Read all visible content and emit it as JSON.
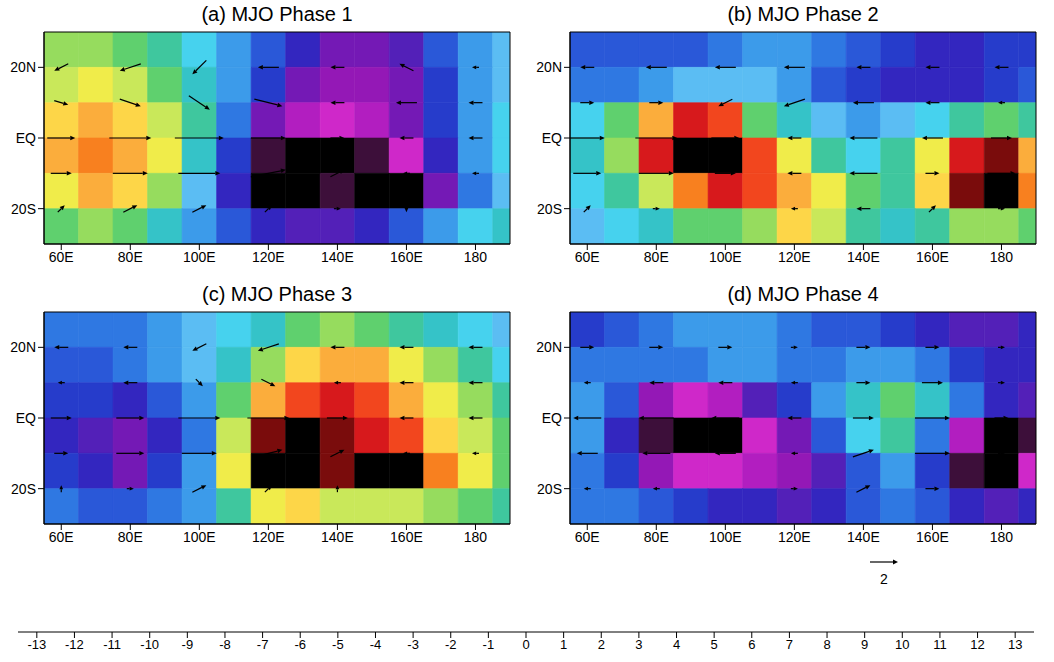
{
  "chart_data": [
    {
      "type": "heatmap",
      "title": "(a) MJO Phase 1",
      "xlim": [
        55,
        190
      ],
      "xticks": [
        {
          "value": 60,
          "label": "60E"
        },
        {
          "value": 80,
          "label": "80E"
        },
        {
          "value": 100,
          "label": "100E"
        },
        {
          "value": 120,
          "label": "120E"
        },
        {
          "value": 140,
          "label": "140E"
        },
        {
          "value": 160,
          "label": "160E"
        },
        180
      ],
      "ylim": [
        -30,
        30
      ],
      "yticks": [
        {
          "value": -20,
          "label": "20S"
        },
        {
          "value": 0,
          "label": "EQ"
        },
        {
          "value": 20,
          "label": "20N"
        }
      ],
      "x": [
        60,
        70,
        80,
        90,
        100,
        110,
        120,
        130,
        140,
        150,
        160,
        170,
        180,
        190
      ],
      "y": [
        25,
        15,
        5,
        -5,
        -15,
        -25
      ],
      "values": [
        [
          -4,
          -4,
          -3,
          -2,
          0,
          2,
          4,
          6,
          8,
          8,
          7,
          4,
          2,
          1
        ],
        [
          -5,
          -6,
          -5,
          -3,
          -1,
          2,
          5,
          8,
          9,
          9,
          8,
          5,
          2,
          1
        ],
        [
          -7,
          -8,
          -7,
          -5,
          -2,
          3,
          8,
          10,
          11,
          10,
          8,
          5,
          2,
          0
        ],
        [
          -8,
          -9,
          -8,
          -6,
          -1,
          5,
          12,
          13,
          13,
          12,
          11,
          6,
          2,
          0
        ],
        [
          -6,
          -8,
          -7,
          -4,
          1,
          6,
          13,
          13,
          12,
          13,
          13,
          8,
          3,
          1
        ],
        [
          -3,
          -4,
          -3,
          -1,
          2,
          4,
          6,
          7,
          7,
          6,
          4,
          2,
          0,
          -1
        ]
      ],
      "vectors": {
        "x": [
          60,
          80,
          100,
          120,
          140,
          160,
          180
        ],
        "y": [
          20,
          10,
          0,
          -10,
          -20
        ],
        "u": [
          [
            -1,
            -1.5,
            -1,
            -1.5,
            -1,
            -1,
            -0.5
          ],
          [
            1,
            1.5,
            1.5,
            2,
            -1,
            -1.5,
            -1
          ],
          [
            2,
            3,
            3.5,
            2.5,
            1,
            -1,
            -1
          ],
          [
            1.5,
            2.5,
            3,
            2.5,
            1,
            -0.5,
            -0.5
          ],
          [
            0.5,
            1,
            1,
            0.5,
            0.5,
            0,
            0
          ]
        ],
        "v": [
          [
            -0.5,
            -0.5,
            -1,
            0,
            0,
            0.5,
            0
          ],
          [
            -0.3,
            -0.5,
            -1,
            -0.5,
            0,
            0,
            0
          ],
          [
            0,
            0,
            0,
            0,
            0,
            0,
            0
          ],
          [
            0,
            0,
            0,
            0.5,
            0.5,
            0,
            0
          ],
          [
            0.5,
            0.5,
            0.5,
            0.5,
            0,
            -0.5,
            0
          ]
        ]
      }
    },
    {
      "type": "heatmap",
      "title": "(b) MJO Phase 2",
      "xlim": [
        55,
        190
      ],
      "xticks": [
        {
          "value": 60,
          "label": "60E"
        },
        {
          "value": 80,
          "label": "80E"
        },
        {
          "value": 100,
          "label": "100E"
        },
        {
          "value": 120,
          "label": "120E"
        },
        {
          "value": 140,
          "label": "140E"
        },
        {
          "value": 160,
          "label": "160E"
        },
        180
      ],
      "ylim": [
        -30,
        30
      ],
      "yticks": [
        {
          "value": -20,
          "label": "20S"
        },
        {
          "value": 0,
          "label": "EQ"
        },
        {
          "value": 20,
          "label": "20N"
        }
      ],
      "x": [
        60,
        70,
        80,
        90,
        100,
        110,
        120,
        130,
        140,
        150,
        160,
        170,
        180,
        190
      ],
      "y": [
        25,
        15,
        5,
        -5,
        -15,
        -25
      ],
      "values": [
        [
          4,
          4,
          4,
          4,
          3,
          2,
          2,
          3,
          4,
          5,
          6,
          6,
          5,
          5
        ],
        [
          3,
          3,
          2,
          1,
          1,
          1,
          2,
          4,
          5,
          6,
          6,
          6,
          5,
          4
        ],
        [
          0,
          -3,
          -8,
          -11,
          -10,
          -3,
          -1,
          1,
          2,
          1,
          0,
          -2,
          -3,
          -2
        ],
        [
          -1,
          -4,
          -11,
          -13,
          -13,
          -10,
          -6,
          -2,
          0,
          -2,
          -6,
          -11,
          -12,
          -8
        ],
        [
          0,
          -2,
          -5,
          -9,
          -11,
          -10,
          -8,
          -6,
          -3,
          -2,
          -7,
          -12,
          -13,
          -9
        ],
        [
          1,
          0,
          -1,
          -3,
          -3,
          -4,
          -7,
          -5,
          -2,
          -1,
          -2,
          -4,
          -4,
          -3
        ]
      ],
      "vectors": {
        "x": [
          60,
          80,
          100,
          120,
          140,
          160,
          180
        ],
        "y": [
          20,
          10,
          0,
          -10,
          -20
        ],
        "u": [
          [
            -1,
            -1.5,
            -1.5,
            -1.5,
            -1,
            -1,
            -1
          ],
          [
            1,
            1,
            -1,
            -1.5,
            -1.5,
            -1,
            -0.5
          ],
          [
            2.5,
            3,
            2,
            -1,
            -2,
            -1.5,
            1.5
          ],
          [
            2,
            2.5,
            1.5,
            -1,
            -2,
            1,
            2
          ],
          [
            0.5,
            0.5,
            0,
            -0.5,
            -1,
            0.5,
            0.5
          ]
        ],
        "v": [
          [
            0,
            0,
            0,
            0,
            0,
            0,
            0
          ],
          [
            0,
            0,
            -0.5,
            -0.5,
            0,
            0,
            0
          ],
          [
            0,
            0,
            0,
            0,
            0,
            0,
            0
          ],
          [
            0,
            0,
            0,
            0,
            0,
            0,
            0
          ],
          [
            0.5,
            0,
            0,
            0,
            0,
            0.5,
            0
          ]
        ]
      }
    },
    {
      "type": "heatmap",
      "title": "(c) MJO Phase 3",
      "xlim": [
        55,
        190
      ],
      "xticks": [
        {
          "value": 60,
          "label": "60E"
        },
        {
          "value": 80,
          "label": "80E"
        },
        {
          "value": 100,
          "label": "100E"
        },
        {
          "value": 120,
          "label": "120E"
        },
        {
          "value": 140,
          "label": "140E"
        },
        {
          "value": 160,
          "label": "160E"
        },
        180
      ],
      "ylim": [
        -30,
        30
      ],
      "yticks": [
        {
          "value": -20,
          "label": "20S"
        },
        {
          "value": 0,
          "label": "EQ"
        },
        {
          "value": 20,
          "label": "20N"
        }
      ],
      "x": [
        60,
        70,
        80,
        90,
        100,
        110,
        120,
        130,
        140,
        150,
        160,
        170,
        180,
        190
      ],
      "y": [
        25,
        15,
        5,
        -5,
        -15,
        -25
      ],
      "values": [
        [
          3,
          3,
          3,
          2,
          1,
          0,
          -1,
          -3,
          -4,
          -3,
          -2,
          -1,
          0,
          1
        ],
        [
          4,
          4,
          3,
          2,
          1,
          -1,
          -4,
          -7,
          -8,
          -8,
          -6,
          -4,
          -2,
          0
        ],
        [
          5,
          5,
          6,
          4,
          2,
          -3,
          -8,
          -10,
          -11,
          -10,
          -8,
          -6,
          -4,
          -2
        ],
        [
          6,
          7,
          8,
          6,
          3,
          -5,
          -12,
          -13,
          -12,
          -11,
          -10,
          -7,
          -5,
          -3
        ],
        [
          5,
          6,
          8,
          5,
          2,
          -6,
          -13,
          -13,
          -12,
          -13,
          -13,
          -9,
          -6,
          -3
        ],
        [
          3,
          4,
          4,
          3,
          2,
          -2,
          -6,
          -7,
          -5,
          -5,
          -5,
          -4,
          -3,
          -2
        ]
      ],
      "vectors": {
        "x": [
          60,
          80,
          100,
          120,
          140,
          160,
          180
        ],
        "y": [
          20,
          10,
          0,
          -10,
          -20
        ],
        "u": [
          [
            -1,
            -1,
            -1,
            -1.5,
            -1,
            -1,
            -1
          ],
          [
            -0.5,
            -1,
            0.5,
            1,
            -0.5,
            -1,
            -1
          ],
          [
            1.5,
            2,
            3,
            3,
            1.5,
            -1,
            -1
          ],
          [
            1,
            2,
            2.5,
            2,
            1,
            -0.5,
            -0.5
          ],
          [
            0,
            0.5,
            1,
            0.5,
            0,
            0,
            0
          ]
        ],
        "v": [
          [
            0,
            0,
            -0.5,
            -0.5,
            0,
            0,
            0
          ],
          [
            0,
            0,
            -0.5,
            -0.5,
            0,
            0,
            0
          ],
          [
            0,
            0,
            0,
            0,
            0,
            0,
            0
          ],
          [
            0,
            0,
            0,
            0.5,
            0.5,
            0,
            0
          ],
          [
            0.5,
            0,
            0.5,
            0.5,
            0.5,
            0,
            0
          ]
        ]
      }
    },
    {
      "type": "heatmap",
      "title": "(d) MJO Phase 4",
      "xlim": [
        55,
        190
      ],
      "xticks": [
        {
          "value": 60,
          "label": "60E"
        },
        {
          "value": 80,
          "label": "80E"
        },
        {
          "value": 100,
          "label": "100E"
        },
        {
          "value": 120,
          "label": "120E"
        },
        {
          "value": 140,
          "label": "140E"
        },
        {
          "value": 160,
          "label": "160E"
        },
        180
      ],
      "ylim": [
        -30,
        30
      ],
      "yticks": [
        {
          "value": -20,
          "label": "20S"
        },
        {
          "value": 0,
          "label": "EQ"
        },
        {
          "value": 20,
          "label": "20N"
        }
      ],
      "x": [
        60,
        70,
        80,
        90,
        100,
        110,
        120,
        130,
        140,
        150,
        160,
        170,
        180,
        190
      ],
      "y": [
        25,
        15,
        5,
        -5,
        -15,
        -25
      ],
      "values": [
        [
          5,
          4,
          3,
          2,
          2,
          2,
          3,
          4,
          4,
          5,
          6,
          7,
          7,
          6
        ],
        [
          3,
          3,
          3,
          3,
          2,
          2,
          3,
          3,
          2,
          2,
          3,
          5,
          6,
          6
        ],
        [
          2,
          4,
          9,
          11,
          10,
          7,
          5,
          2,
          -1,
          -3,
          -1,
          3,
          6,
          7
        ],
        [
          2,
          6,
          12,
          13,
          13,
          11,
          8,
          4,
          0,
          -2,
          3,
          10,
          13,
          12
        ],
        [
          3,
          5,
          9,
          11,
          11,
          10,
          9,
          7,
          4,
          2,
          5,
          12,
          13,
          11
        ],
        [
          3,
          3,
          4,
          5,
          6,
          6,
          7,
          6,
          4,
          3,
          4,
          6,
          7,
          6
        ]
      ],
      "vectors": {
        "x": [
          60,
          80,
          100,
          120,
          140,
          160,
          180
        ],
        "y": [
          20,
          10,
          0,
          -10,
          -20
        ],
        "u": [
          [
            1,
            1,
            1,
            0.5,
            1,
            1,
            0.5
          ],
          [
            -0.5,
            -1,
            -1,
            -0.5,
            1,
            1.5,
            0.5
          ],
          [
            -2,
            -2.5,
            -2,
            -1,
            1.5,
            2.5,
            1
          ],
          [
            -1.5,
            -2,
            -1.5,
            -0.5,
            1.5,
            2.5,
            0.5
          ],
          [
            -0.5,
            -0.5,
            0,
            0.5,
            1,
            1,
            0
          ]
        ],
        "v": [
          [
            0,
            0,
            0,
            0,
            0,
            0,
            0
          ],
          [
            0,
            0,
            0,
            0,
            0,
            0,
            0
          ],
          [
            0,
            0,
            0,
            0,
            0,
            0,
            0
          ],
          [
            0,
            0,
            0,
            0,
            0.5,
            0,
            0
          ],
          [
            0,
            0,
            0,
            0,
            0.5,
            0,
            0
          ]
        ]
      }
    }
  ],
  "colorbar": {
    "range": [
      -13.5,
      13.5
    ],
    "ticks": [
      -13,
      -12,
      -11,
      -10,
      -9,
      -8,
      -7,
      -6,
      -5,
      -4,
      -3,
      -2,
      -1,
      0,
      1,
      2,
      3,
      4,
      5,
      6,
      7,
      8,
      9,
      10,
      11,
      12,
      13
    ],
    "colors": [
      "#000000",
      "#7a0c0c",
      "#d7191c",
      "#f2461e",
      "#f8801f",
      "#fbad3c",
      "#fdd648",
      "#f0ec4a",
      "#c9e85a",
      "#96dc5e",
      "#5fd06e",
      "#3fc79e",
      "#35c3c8",
      "#46d2ee",
      "#5bbdf3",
      "#3c9bea",
      "#2f78e2",
      "#2a58d8",
      "#263ccb",
      "#3326bf",
      "#5320b8",
      "#7419b5",
      "#9418b6",
      "#b21ec0",
      "#cf28c9",
      "#3d0f3a",
      "#000000"
    ]
  },
  "reference_vector": 2
}
